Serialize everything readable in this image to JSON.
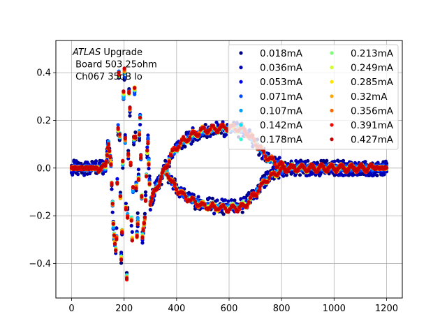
{
  "chart_data": {
    "type": "scatter",
    "annotation": {
      "line1_italic": "ATLAS",
      "line1_rest": " Upgrade",
      "line2": " Board 503 25ohm",
      "line3": " Ch067 35dB lo"
    },
    "xlim": [
      -60,
      1260
    ],
    "ylim": [
      -0.545,
      0.535
    ],
    "xticks": [
      0,
      200,
      400,
      600,
      800,
      1000,
      1200
    ],
    "yticks": [
      -0.4,
      -0.2,
      0.0,
      0.2,
      0.4
    ],
    "xtick_labels": [
      "0",
      "200",
      "400",
      "600",
      "800",
      "1000",
      "1200"
    ],
    "ytick_labels": [
      "−0.4",
      "−0.2",
      "0.0",
      "0.2",
      "0.4"
    ],
    "grid": true,
    "legend_position": "upper right",
    "legend_columns": 2,
    "n_samples": 1200,
    "pulse_key_points": [
      [
        0,
        0.0
      ],
      [
        130,
        0.0
      ],
      [
        140,
        0.12
      ],
      [
        150,
        0.02
      ],
      [
        160,
        -0.28
      ],
      [
        170,
        -0.37
      ],
      [
        180,
        0.41
      ],
      [
        190,
        -0.47
      ],
      [
        200,
        0.5
      ],
      [
        210,
        -0.46
      ],
      [
        220,
        0.42
      ],
      [
        230,
        -0.38
      ],
      [
        240,
        0.33
      ],
      [
        250,
        -0.35
      ],
      [
        260,
        0.28
      ],
      [
        270,
        -0.3
      ],
      [
        280,
        -0.21
      ],
      [
        290,
        0.15
      ],
      [
        300,
        -0.15
      ],
      [
        320,
        -0.09
      ],
      [
        350,
        -0.02
      ],
      [
        380,
        0.06
      ],
      [
        420,
        0.11
      ],
      [
        460,
        0.14
      ],
      [
        500,
        0.16
      ],
      [
        540,
        0.165
      ],
      [
        580,
        0.17
      ],
      [
        620,
        0.17
      ],
      [
        660,
        0.16
      ],
      [
        700,
        0.11
      ],
      [
        740,
        0.05
      ],
      [
        780,
        0.02
      ],
      [
        820,
        0.0
      ],
      [
        1200,
        0.0
      ]
    ],
    "series": [
      {
        "name": "0.018mA",
        "color": "#00007f"
      },
      {
        "name": "0.036mA",
        "color": "#0000b6"
      },
      {
        "name": "0.053mA",
        "color": "#0000f1"
      },
      {
        "name": "0.071mA",
        "color": "#0048ff"
      },
      {
        "name": "0.107mA",
        "color": "#009cff"
      },
      {
        "name": "0.142mA",
        "color": "#00e4f8"
      },
      {
        "name": "0.178mA",
        "color": "#29ffce"
      },
      {
        "name": "0.213mA",
        "color": "#7dff7a"
      },
      {
        "name": "0.249mA",
        "color": "#ceff29"
      },
      {
        "name": "0.285mA",
        "color": "#ffe500"
      },
      {
        "name": "0.32mA",
        "color": "#ffa700"
      },
      {
        "name": "0.356mA",
        "color": "#ff6800"
      },
      {
        "name": "0.391mA",
        "color": "#f10800"
      },
      {
        "name": "0.427mA",
        "color": "#c50000"
      }
    ]
  }
}
